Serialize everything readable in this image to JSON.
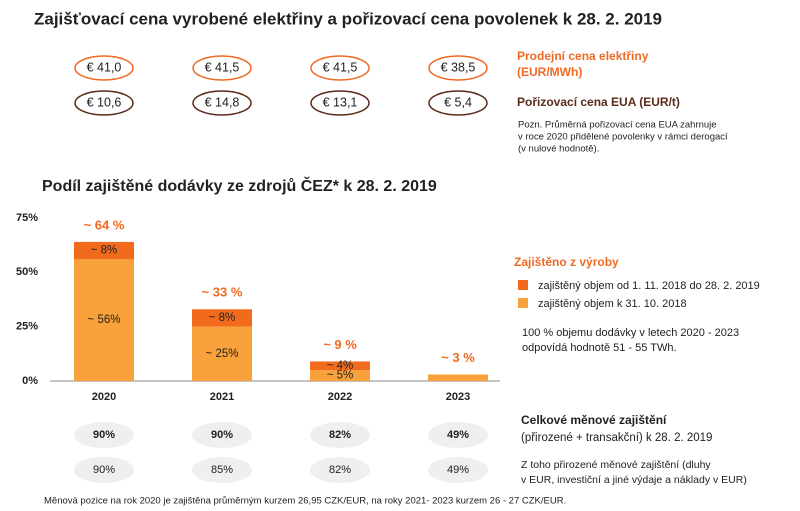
{
  "header": {
    "title": "Zajišťovací cena vyrobené elektřiny a pořizovací cena povolenek k 28. 2. 2019"
  },
  "prices": {
    "rows": [
      {
        "label": [
          "Prodejní cena elektřiny",
          "(EUR/MWh)"
        ],
        "values": [
          "€ 41,0",
          "€ 41,5",
          "€ 41,5",
          "€ 38,5"
        ]
      },
      {
        "label": [
          "Pořizovací cena EUA (EUR/t)"
        ],
        "values": [
          "€ 10,6",
          "€ 14,8",
          "€ 13,1",
          "€ 5,4"
        ]
      }
    ],
    "note": [
      "Pozn. Průměrná pořizovací cena EUA zahrnuje",
      "v roce 2020 přidělené povolenky v rámci derogací",
      "(v nulové hodnotě)."
    ]
  },
  "chart_data": {
    "type": "bar",
    "stacked": true,
    "title": "Podíl zajištěné dodávky ze zdrojů ČEZ* k 28. 2. 2019",
    "categories": [
      "2020",
      "2021",
      "2022",
      "2023"
    ],
    "series": [
      {
        "name": "zajištěný objem od 1. 11. 2018 do 28. 2. 2019",
        "color": "#f26a1b",
        "values": [
          8,
          8,
          4,
          null
        ],
        "value_labels": [
          "~ 8%",
          "~ 8%",
          "~ 4%",
          null
        ]
      },
      {
        "name": "zajištěný objem k 31. 10. 2018",
        "color": "#f9a13a",
        "values": [
          56,
          25,
          5,
          3
        ],
        "value_labels": [
          "~ 56%",
          "~ 25%",
          "~ 5%",
          null
        ]
      }
    ],
    "total_labels": [
      "~ 64 %",
      "~ 33 %",
      "~ 9 %",
      "~ 3 %"
    ],
    "legend_title": "Zajištěno z výroby",
    "annotation": [
      "100 % objemu dodávky v letech 2020 - 2023",
      "odpovídá hodnotě 51 - 55 TWh."
    ],
    "ylim": [
      0,
      75
    ],
    "yticks": [
      {
        "value": 0,
        "label": "0%"
      },
      {
        "value": 25,
        "label": "25%"
      },
      {
        "value": 50,
        "label": "50%"
      },
      {
        "value": 75,
        "label": "75%"
      }
    ]
  },
  "hedging": {
    "rows": [
      {
        "label": [
          "Celkové měnové zajištění",
          "(přirozené + transakční) k 28. 2. 2019"
        ],
        "values": [
          "90%",
          "90%",
          "82%",
          "49%"
        ]
      },
      {
        "label": [
          "Z toho přirozené měnové zajištění (dluhy",
          "v EUR, investiční a jiné výdaje a náklady v EUR)"
        ],
        "values": [
          "90%",
          "85%",
          "82%",
          "49%"
        ]
      }
    ]
  },
  "footnote": "Měnová pozice na rok 2020 je zajištěna průměrným kurzem 26,95 CZK/EUR, na roky 2021- 2023 kurzem 26 - 27 CZK/EUR."
}
